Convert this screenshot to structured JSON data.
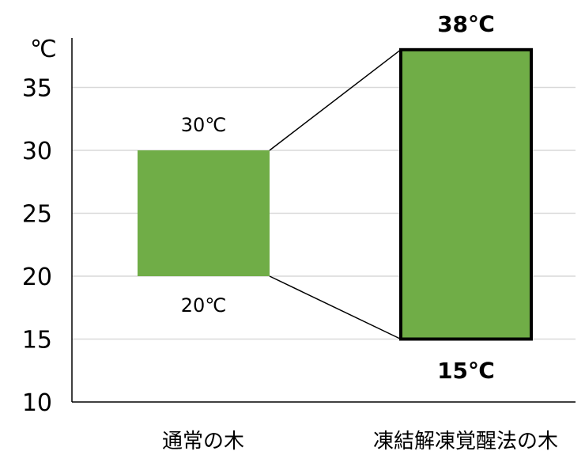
{
  "chart_data": {
    "type": "bar",
    "subtype": "floating-range",
    "unit_label": "℃",
    "y_ticks": [
      10,
      15,
      20,
      25,
      30,
      35
    ],
    "ylim": [
      10,
      38
    ],
    "grid": true,
    "bar_color": "#70ad47",
    "categories": [
      "通常の木",
      "凍結解凍覚醒法の木"
    ],
    "series": [
      {
        "low": [
          20,
          15
        ],
        "high": [
          30,
          38
        ],
        "low_labels": [
          "20℃",
          "15℃"
        ],
        "high_labels": [
          "30℃",
          "38℃"
        ],
        "outlined": [
          false,
          true
        ],
        "bold_labels": [
          false,
          true
        ]
      }
    ],
    "connectors": true
  }
}
